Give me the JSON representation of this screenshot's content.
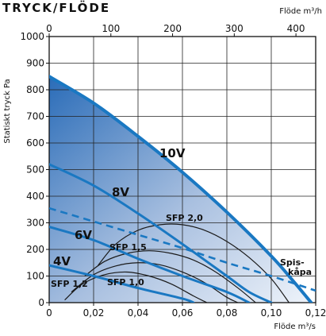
{
  "chart_data": {
    "type": "line",
    "title": "TRYCK/FLÖDE",
    "ylabel": "Statiskt tryck Pa",
    "xlabel_bottom": "Flöde m³/s",
    "xlabel_top": "Flöde m³/h",
    "ylim": [
      0,
      1000
    ],
    "xlim": [
      0,
      0.12
    ],
    "top_xlim": [
      0,
      432
    ],
    "grid": true,
    "y_ticks": [
      "0",
      "100",
      "200",
      "300",
      "400",
      "500",
      "600",
      "700",
      "800",
      "900",
      "1000"
    ],
    "x_ticks_bottom": [
      "0",
      "0,02",
      "0,04",
      "0,06",
      "0,08",
      "0,10",
      "0,12"
    ],
    "x_ticks_top": [
      "0",
      "100",
      "200",
      "300",
      "400"
    ],
    "fan_curves": [
      {
        "name": "10V",
        "x": [
          0,
          0.02,
          0.04,
          0.06,
          0.08,
          0.1,
          0.11,
          0.118
        ],
        "y": [
          850,
          750,
          625,
          490,
          340,
          175,
          80,
          0
        ]
      },
      {
        "name": "8V",
        "x": [
          0,
          0.02,
          0.04,
          0.06,
          0.08,
          0.09,
          0.1
        ],
        "y": [
          520,
          440,
          335,
          220,
          100,
          40,
          0
        ]
      },
      {
        "name": "6V",
        "x": [
          0,
          0.02,
          0.04,
          0.06,
          0.08,
          0.09
        ],
        "y": [
          285,
          235,
          165,
          100,
          40,
          0
        ]
      },
      {
        "name": "4V",
        "x": [
          0,
          0.02,
          0.04,
          0.06,
          0.065
        ],
        "y": [
          140,
          100,
          55,
          15,
          0
        ]
      }
    ],
    "spis_curve": {
      "name": "Spis-kåpa",
      "x": [
        0,
        0.02,
        0.04,
        0.06,
        0.08,
        0.1,
        0.12
      ],
      "y": [
        355,
        305,
        255,
        205,
        150,
        100,
        45
      ]
    },
    "sfp_curves": [
      {
        "name": "SFP 2,0",
        "x": [
          0.022,
          0.03,
          0.04,
          0.05,
          0.06,
          0.07,
          0.08,
          0.09,
          0.1,
          0.108
        ],
        "y": [
          140,
          220,
          272,
          293,
          293,
          272,
          230,
          170,
          90,
          0
        ]
      },
      {
        "name": "SFP 1,5",
        "x": [
          0.016,
          0.025,
          0.035,
          0.045,
          0.055,
          0.065,
          0.075,
          0.085,
          0.093
        ],
        "y": [
          100,
          155,
          185,
          195,
          185,
          160,
          115,
          55,
          0
        ]
      },
      {
        "name": "SFP 1,2",
        "x": [
          0.01,
          0.02,
          0.03,
          0.04,
          0.05,
          0.06,
          0.07,
          0.08,
          0.085
        ],
        "y": [
          40,
          105,
          138,
          150,
          142,
          115,
          75,
          20,
          0
        ]
      },
      {
        "name": "SFP 1,0",
        "x": [
          0.007,
          0.015,
          0.025,
          0.035,
          0.045,
          0.055,
          0.065,
          0.071
        ],
        "y": [
          10,
          70,
          105,
          115,
          100,
          70,
          25,
          0
        ]
      }
    ],
    "labels": {
      "v10": "10V",
      "v8": "8V",
      "v6": "6V",
      "v4": "4V",
      "sfp20": "SFP 2,0",
      "sfp15": "SFP 1,5",
      "sfp12": "SFP 1,2",
      "sfp10": "SFP 1,0",
      "spis1": "Spis-",
      "spis2": "kåpa"
    },
    "colors": {
      "fan_curve": "#1a78c2",
      "sfp_curve": "#1a1a1a",
      "gradient_dark": "#2a6cb8",
      "gradient_light": "#eef3fa"
    }
  }
}
